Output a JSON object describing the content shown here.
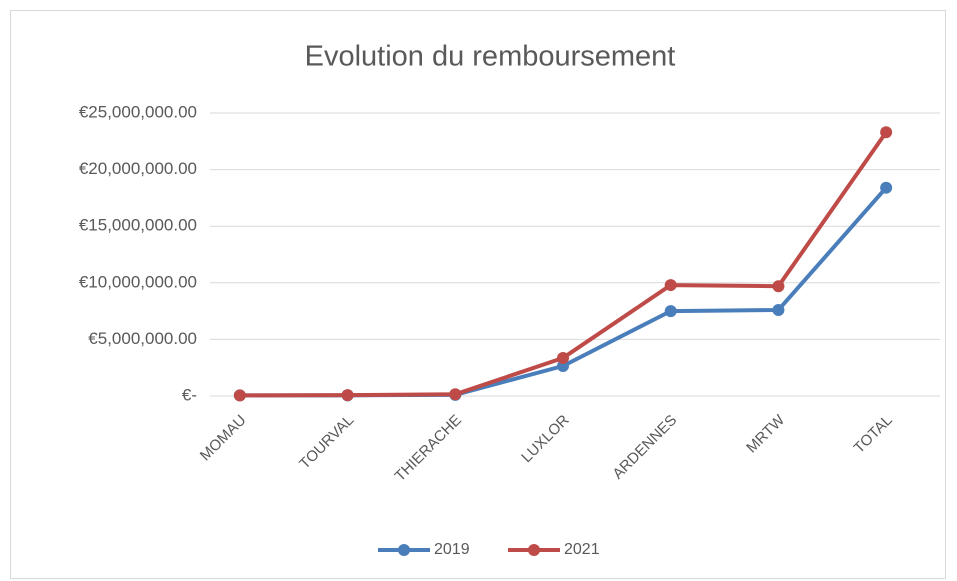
{
  "chart_data": {
    "type": "line",
    "title": "Evolution du remboursement",
    "categories": [
      "MOMAU",
      "TOURVAL",
      "THIERACHE",
      "LUXLOR",
      "ARDENNES",
      "MRTW",
      "TOTAL"
    ],
    "series": [
      {
        "name": "2019",
        "color": "#4a7ebb",
        "values": [
          50000,
          60000,
          100000,
          2650000,
          7500000,
          7600000,
          18400000
        ]
      },
      {
        "name": "2021",
        "color": "#be4b48",
        "values": [
          50000,
          80000,
          150000,
          3360000,
          9800000,
          9700000,
          23300000
        ]
      }
    ],
    "ylim": [
      0,
      25000000
    ],
    "yticks": [
      {
        "value": 0,
        "label": "€-"
      },
      {
        "value": 5000000,
        "label": "€5,000,000.00"
      },
      {
        "value": 10000000,
        "label": "€10,000,000.00"
      },
      {
        "value": 15000000,
        "label": "€15,000,000.00"
      },
      {
        "value": 20000000,
        "label": "€20,000,000.00"
      },
      {
        "value": 25000000,
        "label": "€25,000,000.00"
      }
    ],
    "grid": true,
    "legend": "bottom"
  }
}
